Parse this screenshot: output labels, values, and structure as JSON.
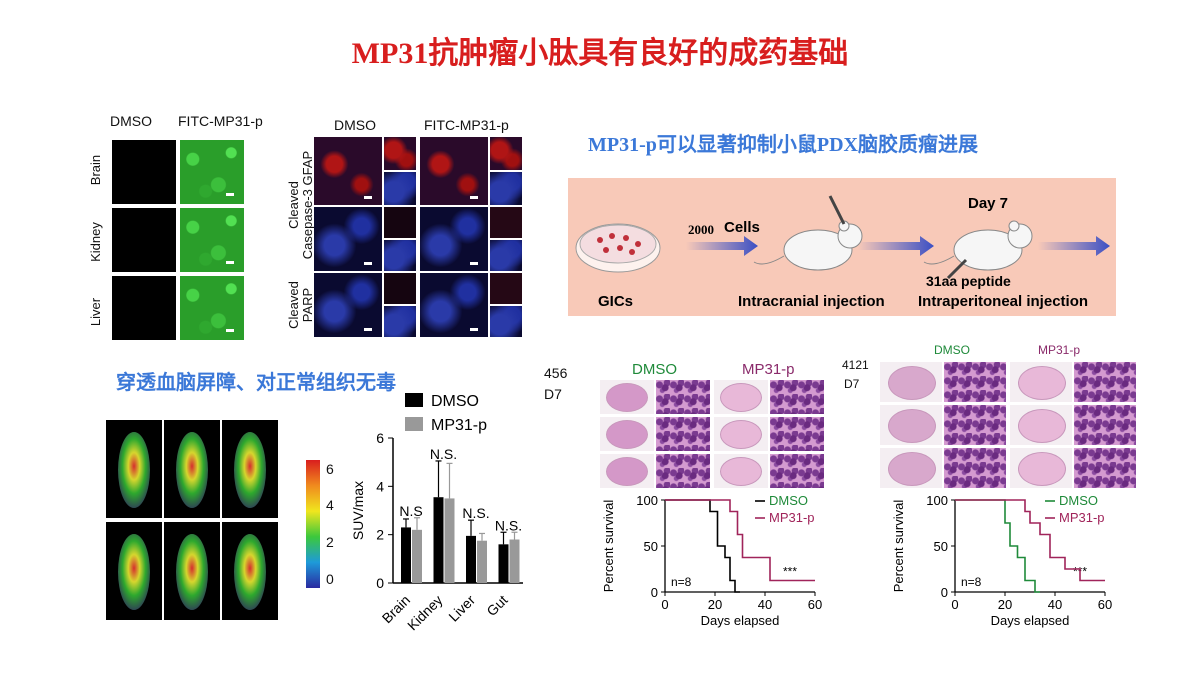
{
  "title": "MP31抗肿瘤小肽具有良好的成药基础",
  "fluor_panel": {
    "col_labels": [
      "DMSO",
      "FITC-MP31-p"
    ],
    "row_labels": [
      "Brain",
      "Kidney",
      "Liver"
    ]
  },
  "ihc_panel": {
    "col_labels": [
      "DMSO",
      "FITC-MP31-p"
    ],
    "row_labels": [
      [
        "Cleaved",
        "Casepase-3 GFAP"
      ],
      [
        "Cleaved",
        "PARP"
      ]
    ]
  },
  "section_pdx": "MP31-p可以显著抑制小鼠PDX脑胶质瘤进展",
  "section_bbb": "穿透血脑屏障、对正常组织无毒",
  "schematic": {
    "cells_count": "2000",
    "cells_label": "Cells",
    "day_label": "Day 7",
    "peptide_label": "31aa peptide",
    "gics": "GICs",
    "intracranial": "Intracranial injection",
    "intraperitoneal": "Intraperitoneal injection",
    "colors": {
      "box": "#f8c9b8",
      "arrow": "#3b4fc4"
    }
  },
  "pet_colorbar": {
    "ticks": [
      "6",
      "4",
      "2",
      "0"
    ]
  },
  "suv_chart": {
    "chart_data": {
      "type": "bar",
      "categories": [
        "Brain",
        "Kidney",
        "Liver",
        "Gut"
      ],
      "series": [
        {
          "name": "DMSO",
          "values": [
            2.3,
            3.55,
            1.95,
            1.6
          ],
          "errors": [
            0.35,
            1.5,
            0.65,
            0.5
          ],
          "color": "#000000"
        },
        {
          "name": "MP31-p",
          "values": [
            2.2,
            3.5,
            1.75,
            1.8
          ],
          "errors": [
            0.5,
            1.45,
            0.3,
            0.3
          ],
          "color": "#999999"
        }
      ],
      "ylabel": "SUV/max",
      "ylim": [
        0,
        6
      ],
      "yticks": [
        "0",
        "2",
        "4",
        "6"
      ],
      "annotations": [
        "N.S",
        "N.S.",
        "N.S.",
        "N.S."
      ]
    }
  },
  "pdx_456": {
    "id": "456",
    "day": "D7",
    "col_labels": [
      "DMSO",
      "MP31-p"
    ],
    "chart_data": {
      "type": "line",
      "xlabel": "Days elapsed",
      "ylabel": "Percent survival",
      "xticks": [
        "0",
        "20",
        "40",
        "60"
      ],
      "yticks": [
        "0",
        "50",
        "100"
      ],
      "xlim": [
        0,
        60
      ],
      "ylim": [
        0,
        100
      ],
      "n_label": "n=8",
      "sig": "***",
      "series": [
        {
          "name": "DMSO",
          "color": "#000000",
          "steps": [
            [
              0,
              100
            ],
            [
              18,
              100
            ],
            [
              18,
              87.5
            ],
            [
              21,
              87.5
            ],
            [
              21,
              50
            ],
            [
              24,
              50
            ],
            [
              24,
              37.5
            ],
            [
              26,
              37.5
            ],
            [
              26,
              12.5
            ],
            [
              28,
              12.5
            ],
            [
              28,
              0
            ],
            [
              30,
              0
            ]
          ]
        },
        {
          "name": "MP31-p",
          "color": "#a0245a",
          "steps": [
            [
              0,
              100
            ],
            [
              26,
              100
            ],
            [
              26,
              87.5
            ],
            [
              29,
              87.5
            ],
            [
              29,
              62.5
            ],
            [
              31,
              62.5
            ],
            [
              31,
              37.5
            ],
            [
              42,
              37.5
            ],
            [
              42,
              12.5
            ],
            [
              60,
              12.5
            ]
          ]
        }
      ]
    }
  },
  "pdx_4121": {
    "id": "4121",
    "day": "D7",
    "col_labels": [
      "DMSO",
      "MP31-p"
    ],
    "chart_data": {
      "type": "line",
      "xlabel": "Days elapsed",
      "ylabel": "Percent survival",
      "xticks": [
        "0",
        "20",
        "40",
        "60"
      ],
      "yticks": [
        "0",
        "50",
        "100"
      ],
      "xlim": [
        0,
        60
      ],
      "ylim": [
        0,
        100
      ],
      "n_label": "n=8",
      "sig": "***",
      "series": [
        {
          "name": "DMSO",
          "color": "#1f8a3a",
          "steps": [
            [
              0,
              100
            ],
            [
              20,
              100
            ],
            [
              20,
              75
            ],
            [
              22,
              75
            ],
            [
              22,
              50
            ],
            [
              25,
              50
            ],
            [
              25,
              37.5
            ],
            [
              28,
              37.5
            ],
            [
              28,
              12.5
            ],
            [
              32,
              12.5
            ],
            [
              32,
              0
            ],
            [
              34,
              0
            ]
          ]
        },
        {
          "name": "MP31-p",
          "color": "#a0245a",
          "steps": [
            [
              0,
              100
            ],
            [
              28,
              100
            ],
            [
              28,
              87.5
            ],
            [
              30,
              87.5
            ],
            [
              30,
              75
            ],
            [
              34,
              75
            ],
            [
              34,
              62.5
            ],
            [
              38,
              62.5
            ],
            [
              38,
              37.5
            ],
            [
              44,
              37.5
            ],
            [
              44,
              25
            ],
            [
              50,
              25
            ],
            [
              50,
              12.5
            ],
            [
              60,
              12.5
            ]
          ]
        }
      ]
    }
  }
}
